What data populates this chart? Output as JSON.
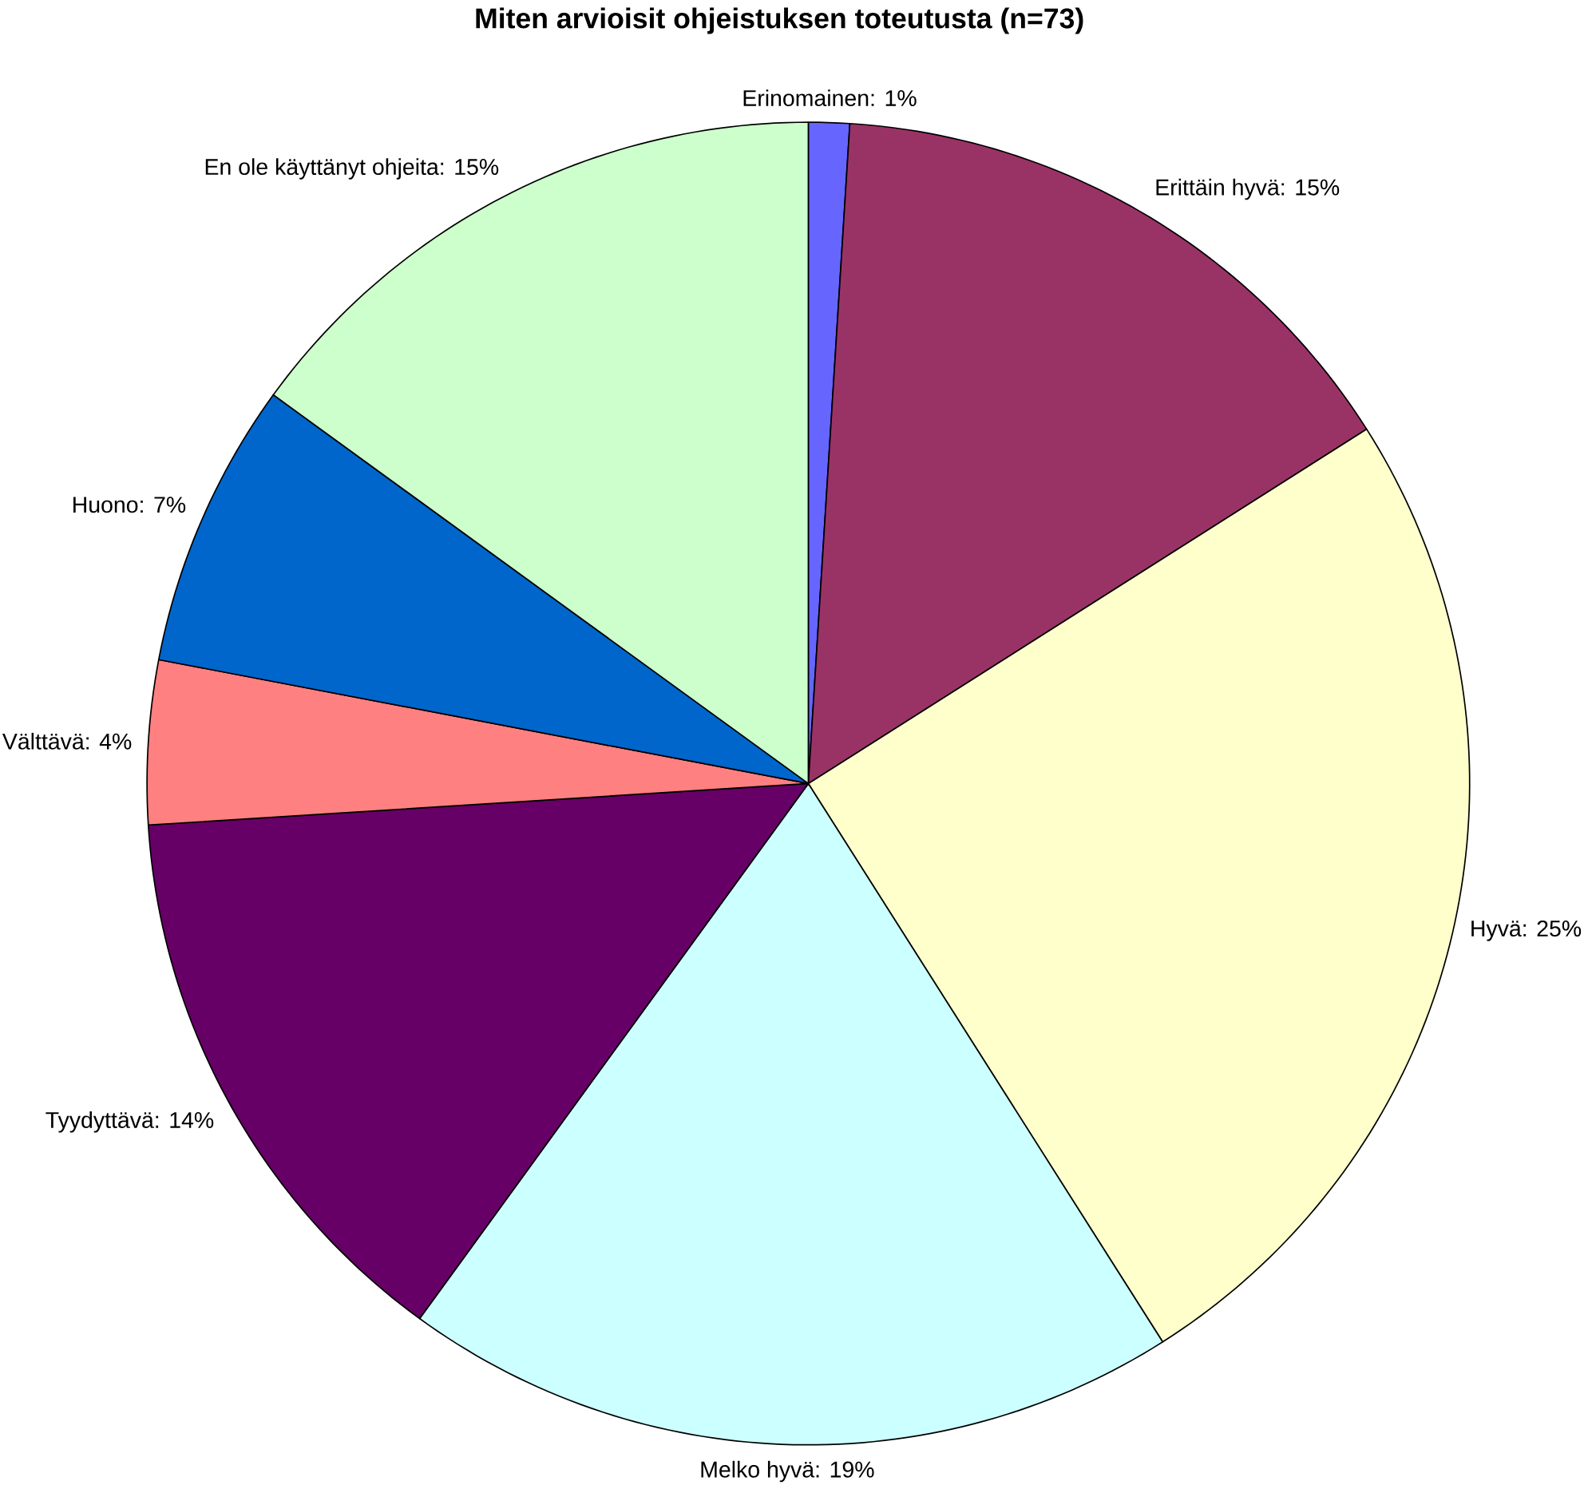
{
  "chart_data": {
    "type": "pie",
    "title": "Miten arvioisit ohjeistuksen toteutusta (n=73)",
    "categories": [
      "Erinomainen: 1%",
      "Erittäin hyvä: 15%",
      "Hyvä: 25%",
      "Melko hyvä: 19%",
      "Tyydyttävä: 14%",
      "Välttävä: 4%",
      "Huono: 7%",
      "En ole käyttänyt ohjeita: 15%"
    ],
    "values": [
      1,
      15,
      25,
      19,
      14,
      4,
      7,
      15
    ],
    "colors": [
      "#6666ff",
      "#993366",
      "#ffffcc",
      "#ccffff",
      "#660066",
      "#ff8080",
      "#0066cc",
      "#ccffcc"
    ]
  }
}
